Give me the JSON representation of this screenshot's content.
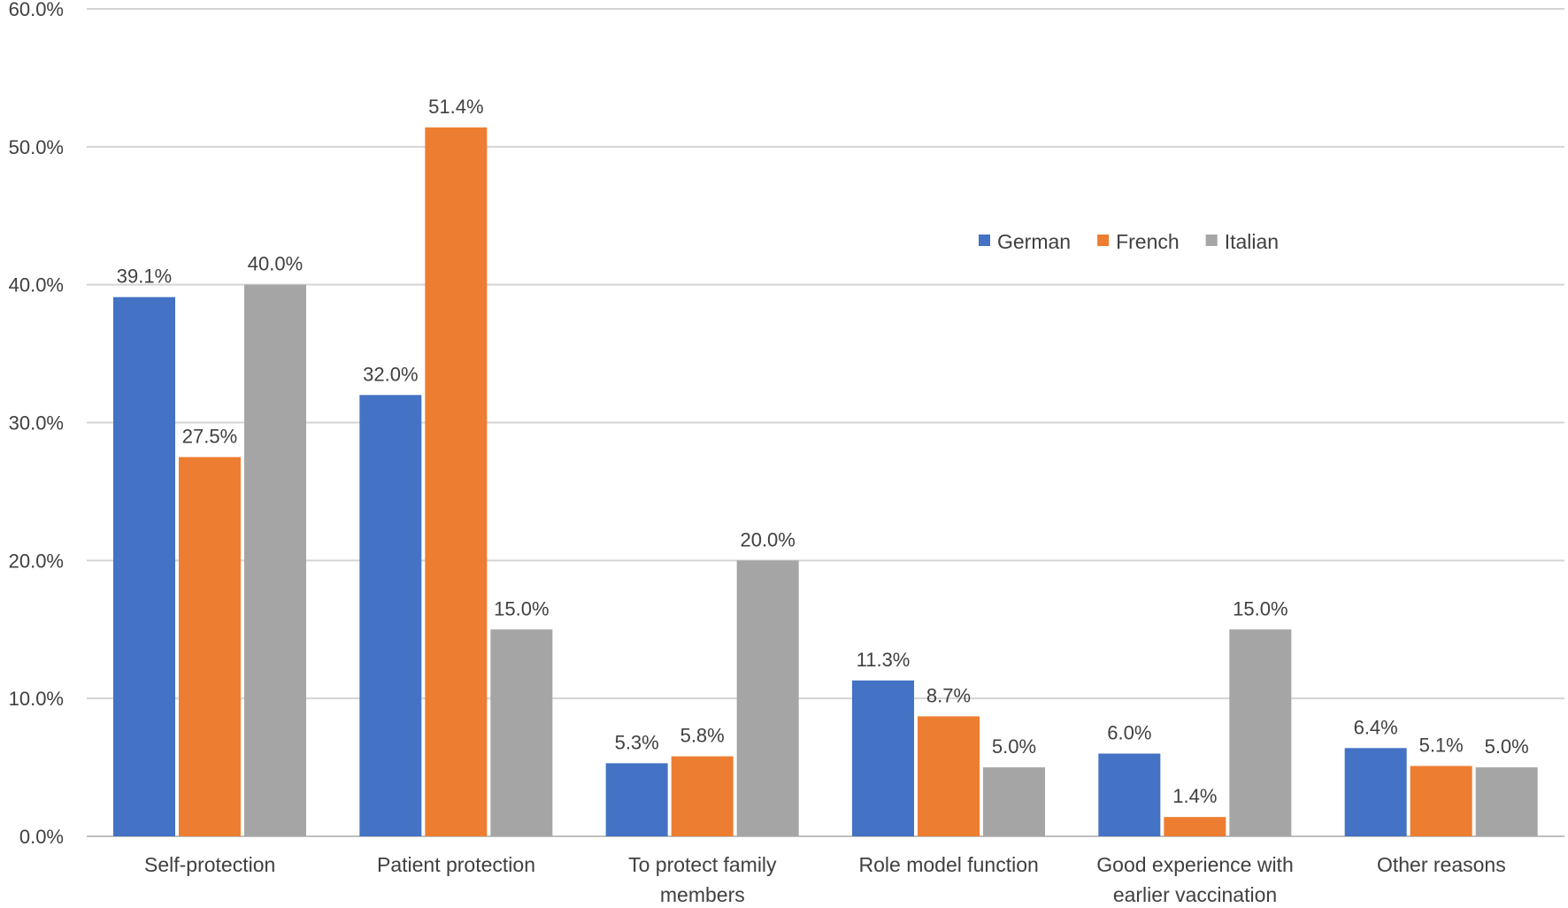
{
  "chart_data": {
    "type": "bar",
    "title": "",
    "xlabel": "",
    "ylabel": "",
    "ylim": [
      0,
      60
    ],
    "yticks": [
      0,
      10,
      20,
      30,
      40,
      50,
      60
    ],
    "ytick_labels": [
      "0.0%",
      "10.0%",
      "20.0%",
      "30.0%",
      "40.0%",
      "50.0%",
      "60.0%"
    ],
    "grid": true,
    "legend_position": "top-right",
    "categories": [
      [
        "Self-protection"
      ],
      [
        "Patient protection"
      ],
      [
        "To protect family",
        "members"
      ],
      [
        "Role model function"
      ],
      [
        "Good experience with",
        "earlier vaccination"
      ],
      [
        "Other reasons"
      ]
    ],
    "series": [
      {
        "name": "German",
        "color": "#4472c4",
        "values": [
          39.1,
          32.0,
          5.3,
          11.3,
          6.0,
          6.4
        ],
        "labels": [
          "39.1%",
          "32.0%",
          "5.3%",
          "11.3%",
          "6.0%",
          "6.4%"
        ]
      },
      {
        "name": "French",
        "color": "#ed7d31",
        "values": [
          27.5,
          51.4,
          5.8,
          8.7,
          1.4,
          5.1
        ],
        "labels": [
          "27.5%",
          "51.4%",
          "5.8%",
          "8.7%",
          "1.4%",
          "5.1%"
        ]
      },
      {
        "name": "Italian",
        "color": "#a5a5a5",
        "values": [
          40.0,
          15.0,
          20.0,
          5.0,
          15.0,
          5.0
        ],
        "labels": [
          "40.0%",
          "15.0%",
          "20.0%",
          "5.0%",
          "15.0%",
          "5.0%"
        ]
      }
    ]
  }
}
